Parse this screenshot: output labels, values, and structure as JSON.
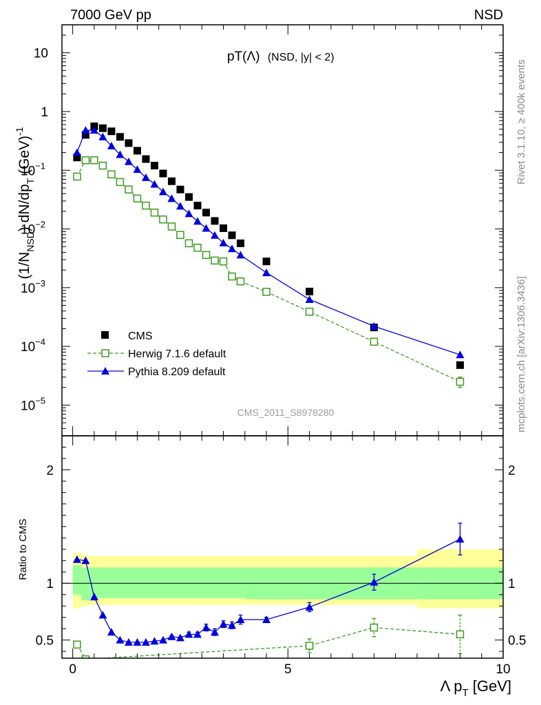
{
  "header": {
    "left": "7000 GeV pp",
    "right": "NSD"
  },
  "side_labels": {
    "rivet": "Rivet 3.1.10, ≥ 400k events",
    "mcplots": "mcplots.cern.ch [arXiv:1306.3436]"
  },
  "chart_data": [
    {
      "type": "scatter",
      "title": "pT(Λ) (NSD, |y| < 2)",
      "title_main": "pT(Λ)",
      "title_sub": "(NSD, |y| < 2)",
      "ylabel": "(1/N_NSD) dN/dp_T (GeV)^-1",
      "watermark": "CMS_2011_S8978280",
      "yscale": "log",
      "ylim": [
        3e-06,
        30
      ],
      "xlim": [
        -0.25,
        10
      ],
      "y_ticks": [
        {
          "v": 1e-05,
          "base": "10",
          "exp": "−5"
        },
        {
          "v": 0.0001,
          "base": "10",
          "exp": "−4"
        },
        {
          "v": 0.001,
          "base": "10",
          "exp": "−3"
        },
        {
          "v": 0.01,
          "base": "10",
          "exp": "−2"
        },
        {
          "v": 0.1,
          "base": "10",
          "exp": "−1"
        },
        {
          "v": 1,
          "base": "1",
          "exp": ""
        },
        {
          "v": 10,
          "base": "10",
          "exp": ""
        }
      ],
      "legend_position": "lower-left",
      "series": [
        {
          "name": "CMS",
          "color": "#000000",
          "marker": "filled-square",
          "x": [
            0.1,
            0.3,
            0.5,
            0.7,
            0.9,
            1.1,
            1.3,
            1.5,
            1.7,
            1.9,
            2.1,
            2.3,
            2.5,
            2.7,
            2.9,
            3.1,
            3.3,
            3.5,
            3.7,
            3.9,
            4.5,
            5.5,
            7.0,
            9.0
          ],
          "y": [
            0.165,
            0.4,
            0.56,
            0.52,
            0.46,
            0.37,
            0.29,
            0.215,
            0.155,
            0.12,
            0.088,
            0.065,
            0.047,
            0.035,
            0.025,
            0.019,
            0.0137,
            0.0103,
            0.0078,
            0.0057,
            0.0028,
            0.00086,
            0.00021,
            4.8e-05
          ]
        },
        {
          "name": "Herwig 7.1.6 default",
          "color": "#3a9a1a",
          "marker": "open-square",
          "line": "dashed",
          "x": [
            0.1,
            0.3,
            0.5,
            0.7,
            0.9,
            1.1,
            1.3,
            1.5,
            1.7,
            1.9,
            2.1,
            2.3,
            2.5,
            2.7,
            2.9,
            3.1,
            3.3,
            3.5,
            3.7,
            3.9,
            4.5,
            5.5,
            7.0,
            9.0
          ],
          "y": [
            0.078,
            0.148,
            0.148,
            0.12,
            0.085,
            0.063,
            0.047,
            0.033,
            0.025,
            0.019,
            0.0145,
            0.011,
            0.0079,
            0.0057,
            0.0048,
            0.0036,
            0.0029,
            0.0028,
            0.00155,
            0.00128,
            0.00085,
            0.00039,
            0.00012,
            2.5e-05
          ],
          "err": [
            0,
            0,
            0,
            0,
            0,
            0,
            0,
            0,
            0,
            0,
            0,
            0,
            0,
            0,
            0,
            0,
            0,
            0,
            0,
            0,
            0,
            0,
            1.2e-05,
            5e-06
          ]
        },
        {
          "name": "Pythia 8.209 default",
          "color": "#0000dd",
          "marker": "filled-triangle",
          "line": "solid",
          "x": [
            0.1,
            0.3,
            0.5,
            0.7,
            0.9,
            1.1,
            1.3,
            1.5,
            1.7,
            1.9,
            2.1,
            2.3,
            2.5,
            2.7,
            2.9,
            3.1,
            3.3,
            3.5,
            3.7,
            3.9,
            4.5,
            5.5,
            7.0,
            9.0
          ],
          "y": [
            0.2,
            0.48,
            0.48,
            0.37,
            0.26,
            0.185,
            0.14,
            0.103,
            0.075,
            0.058,
            0.043,
            0.033,
            0.0245,
            0.0182,
            0.0135,
            0.0103,
            0.0078,
            0.0058,
            0.0046,
            0.0036,
            0.0018,
            0.00063,
            0.00022,
            7.2e-05
          ]
        }
      ]
    },
    {
      "type": "scatter",
      "ylabel": "Ratio to CMS",
      "xlabel": "Λ p_T [GeV]",
      "xlabel_main": "Λ p",
      "xlabel_sub": "T",
      "xlabel_unit": " [GeV]",
      "ylim": [
        0.34,
        2.3
      ],
      "xlim": [
        -0.25,
        10
      ],
      "y_ticks": [
        0.5,
        1,
        2
      ],
      "y_tick_labels": [
        "0.5",
        "1",
        "2"
      ],
      "x_ticks": [
        0,
        5,
        10
      ],
      "x_tick_labels": [
        "0",
        "5",
        "10"
      ],
      "reference_line": 1,
      "bands": [
        {
          "x0": 0,
          "x1": 0.2,
          "yellow": [
            0.78,
            1.27
          ],
          "green": [
            0.9,
            1.16
          ]
        },
        {
          "x0": 0.2,
          "x1": 0.4,
          "yellow": [
            0.8,
            1.25
          ],
          "green": [
            0.85,
            1.14
          ]
        },
        {
          "x0": 0.4,
          "x1": 4,
          "yellow": [
            0.81,
            1.24
          ],
          "green": [
            0.87,
            1.14
          ]
        },
        {
          "x0": 4,
          "x1": 8,
          "yellow": [
            0.81,
            1.24
          ],
          "green": [
            0.86,
            1.14
          ]
        },
        {
          "x0": 8,
          "x1": 10,
          "yellow": [
            0.78,
            1.3
          ],
          "green": [
            0.86,
            1.14
          ]
        }
      ],
      "series": [
        {
          "name": "Herwig 7.1.6 default",
          "color": "#3a9a1a",
          "marker": "open-square",
          "line": "dashed",
          "x": [
            0.1,
            0.3,
            5.5,
            7.0,
            9.0
          ],
          "y": [
            0.46,
            0.33,
            0.45,
            0.61,
            0.55
          ],
          "err": [
            0,
            0,
            0.06,
            0.08,
            0.17
          ]
        },
        {
          "name": "Pythia 8.209 default",
          "color": "#0000dd",
          "marker": "filled-triangle",
          "line": "solid",
          "x": [
            0.1,
            0.3,
            0.5,
            0.7,
            0.9,
            1.1,
            1.3,
            1.5,
            1.7,
            1.9,
            2.1,
            2.3,
            2.5,
            2.7,
            2.9,
            3.1,
            3.3,
            3.5,
            3.7,
            3.9,
            4.5,
            5.5,
            7.0,
            9.0
          ],
          "y": [
            1.21,
            1.2,
            0.88,
            0.72,
            0.57,
            0.5,
            0.48,
            0.48,
            0.48,
            0.49,
            0.5,
            0.53,
            0.52,
            0.55,
            0.55,
            0.61,
            0.57,
            0.64,
            0.63,
            0.68,
            0.68,
            0.79,
            1.01,
            1.39
          ],
          "err": [
            0,
            0,
            0,
            0,
            0,
            0,
            0,
            0,
            0,
            0,
            0,
            0.01,
            0.01,
            0.02,
            0.02,
            0.03,
            0.03,
            0.03,
            0.03,
            0.04,
            0.02,
            0.04,
            0.07,
            0.14
          ]
        }
      ]
    }
  ]
}
